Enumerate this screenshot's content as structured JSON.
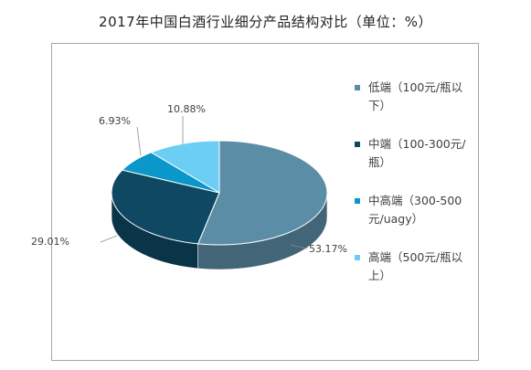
{
  "chart_data": {
    "type": "pie",
    "title": "2017年中国白酒行业细分产品结构对比（单位：%）",
    "three_d": true,
    "legend_position": "right",
    "slices": [
      {
        "name": "低端（100元/瓶以下）",
        "value": 53.17,
        "label": "53.17%",
        "color": "#5b8ea6"
      },
      {
        "name": "中端（100-300元/瓶）",
        "value": 29.01,
        "label": "29.01%",
        "color": "#0e4863"
      },
      {
        "name": "中高端（300-500元/uagy）",
        "value": 6.93,
        "label": "6.93%",
        "color": "#0a97c9"
      },
      {
        "name": "高端（500元/瓶以上）",
        "value": 10.88,
        "label": "10.88%",
        "color": "#6dcef5"
      }
    ]
  }
}
